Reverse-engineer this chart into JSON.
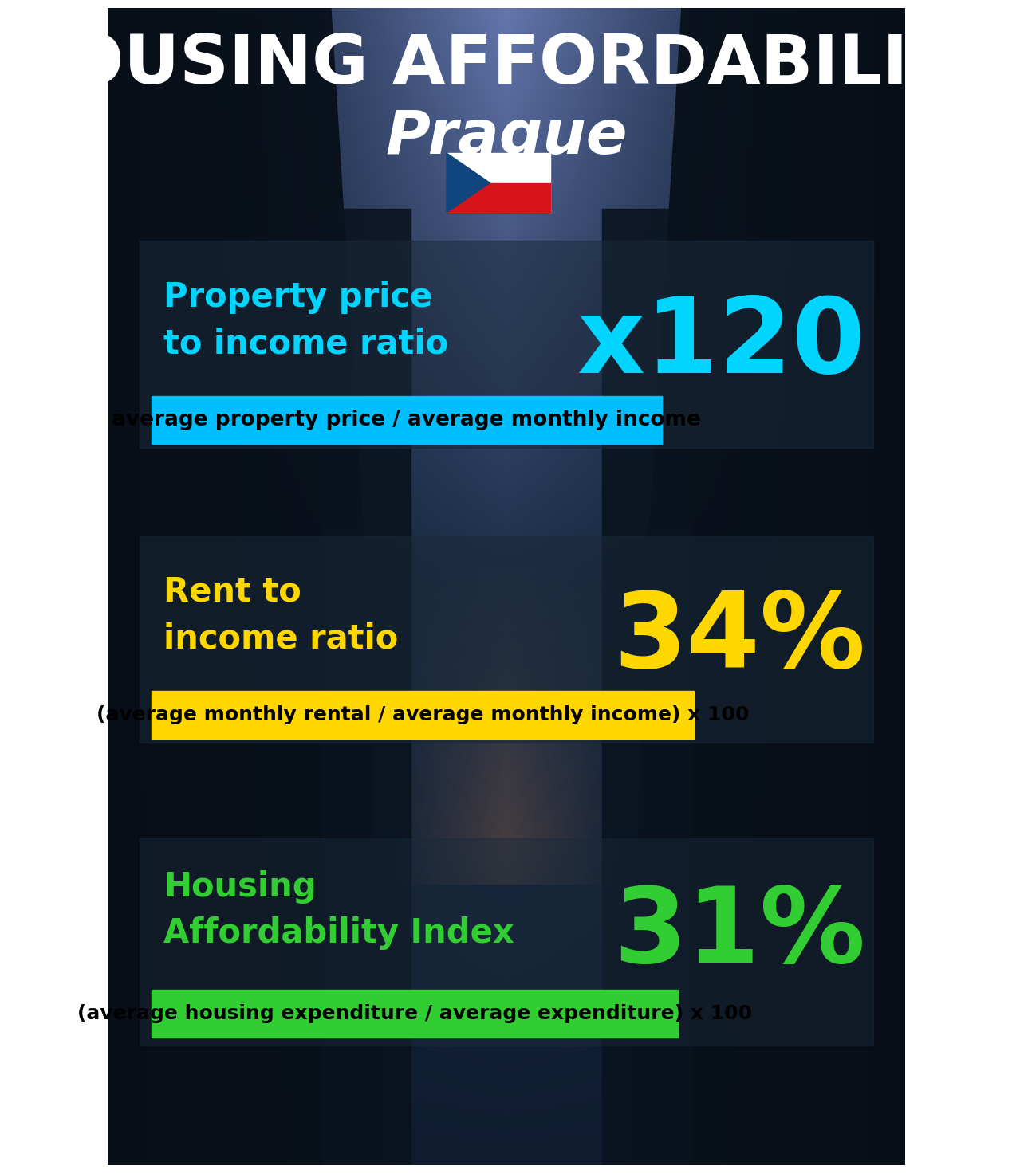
{
  "title_line1": "HOUSING AFFORDABILITY",
  "title_line2": "Prague",
  "bg_color": "#0d1b2a",
  "section1_label": "Property price\nto income ratio",
  "section1_value": "x120",
  "section1_label_color": "#00d4ff",
  "section1_value_color": "#00d4ff",
  "section1_banner": "average property price / average monthly income",
  "section1_banner_bg": "#00bfff",
  "section2_label": "Rent to\nincome ratio",
  "section2_value": "34%",
  "section2_label_color": "#ffd700",
  "section2_value_color": "#ffd700",
  "section2_banner": "(average monthly rental / average monthly income) x 100",
  "section2_banner_bg": "#ffd700",
  "section3_label": "Housing\nAffordability Index",
  "section3_value": "31%",
  "section3_label_color": "#32cd32",
  "section3_value_color": "#32cd32",
  "section3_banner": "(average housing expenditure / average expenditure) x 100",
  "section3_banner_bg": "#32cd32",
  "flag_white": "#ffffff",
  "flag_red": "#d7141a",
  "flag_blue": "#11457e"
}
